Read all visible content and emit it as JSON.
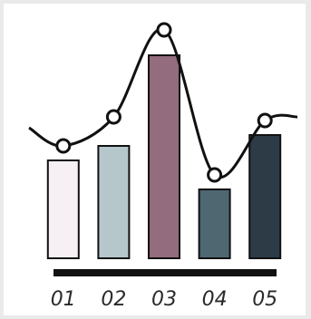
{
  "chart_data": {
    "type": "bar",
    "categories": [
      "01",
      "02",
      "03",
      "04",
      "05"
    ],
    "values": [
      27,
      31,
      56,
      19,
      34
    ],
    "line_values": [
      31,
      39,
      63,
      23,
      38
    ],
    "ylim": [
      0,
      66
    ],
    "bar_colors": [
      "#f6eff4",
      "#b6c7cc",
      "#936c7d",
      "#4f6771",
      "#2d3b47"
    ],
    "stroke_color": "#111111",
    "axis_color": "#111111",
    "background": "#ebeaeb",
    "panel_background": "#ffffff",
    "title": "",
    "xlabel": "",
    "ylabel": "",
    "grid": false,
    "legend": "none"
  }
}
